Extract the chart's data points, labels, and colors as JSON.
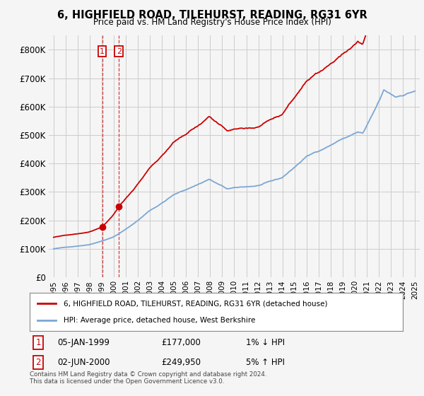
{
  "title": "6, HIGHFIELD ROAD, TILEHURST, READING, RG31 6YR",
  "subtitle": "Price paid vs. HM Land Registry's House Price Index (HPI)",
  "legend_line1": "6, HIGHFIELD ROAD, TILEHURST, READING, RG31 6YR (detached house)",
  "legend_line2": "HPI: Average price, detached house, West Berkshire",
  "footnote": "Contains HM Land Registry data © Crown copyright and database right 2024.\nThis data is licensed under the Open Government Licence v3.0.",
  "sale1_label": "1",
  "sale1_date": "05-JAN-1999",
  "sale1_price": "£177,000",
  "sale1_hpi": "1% ↓ HPI",
  "sale2_label": "2",
  "sale2_date": "02-JUN-2000",
  "sale2_price": "£249,950",
  "sale2_hpi": "5% ↑ HPI",
  "sale1_x": 1999.03,
  "sale1_y": 177000,
  "sale2_x": 2000.42,
  "sale2_y": 249950,
  "line_color_red": "#cc0000",
  "line_color_blue": "#7ba7d4",
  "marker_color": "#cc0000",
  "box_color": "#cc0000",
  "ylim": [
    0,
    850000
  ],
  "yticks": [
    0,
    100000,
    200000,
    300000,
    400000,
    500000,
    600000,
    700000,
    800000
  ],
  "ytick_labels": [
    "£0",
    "£100K",
    "£200K",
    "£300K",
    "£400K",
    "£500K",
    "£600K",
    "£700K",
    "£800K"
  ],
  "background_color": "#f5f5f5",
  "grid_color": "#cccccc",
  "xlim_start": 1994.6,
  "xlim_end": 2025.4
}
